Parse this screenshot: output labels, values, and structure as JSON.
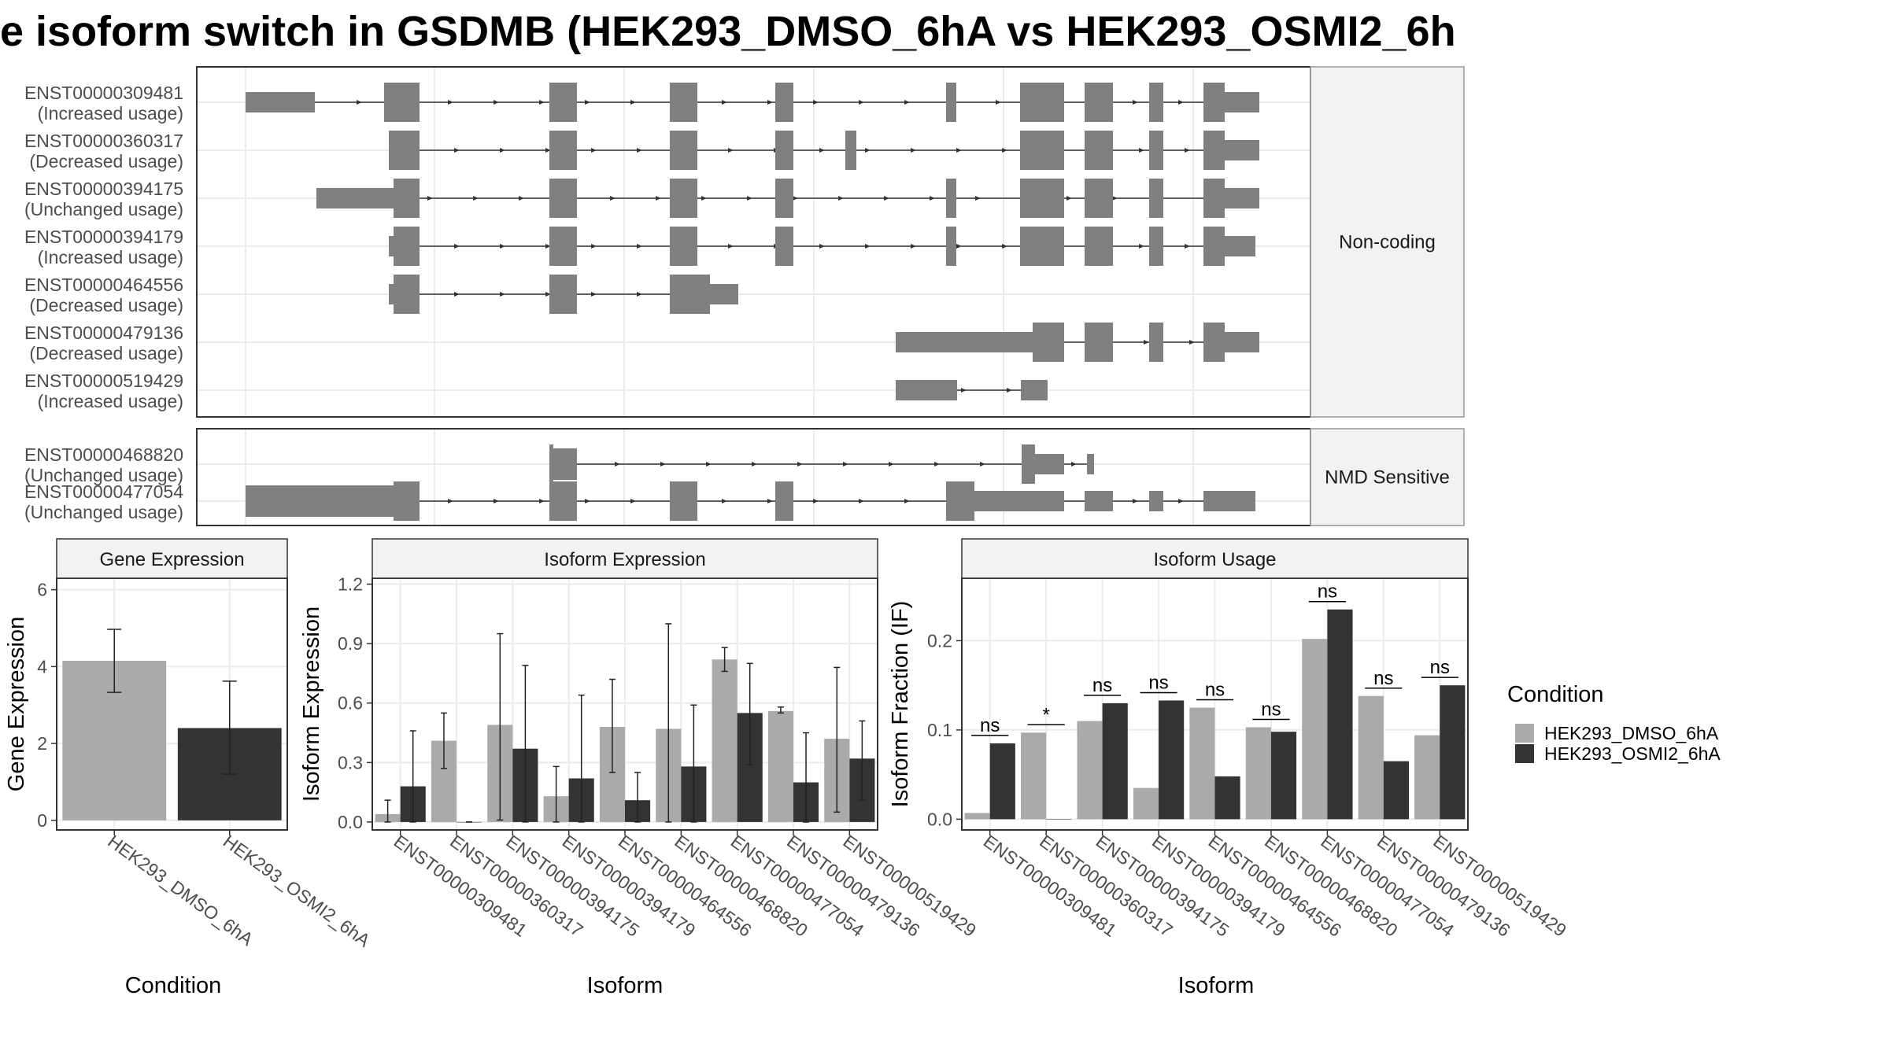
{
  "title": "e isoform switch in GSDMB (HEK293_DMSO_6hA vs HEK293_OSMI2_6h",
  "colors": {
    "exon": "#808080",
    "dmso": "#AAAAAA",
    "osmi2": "#333333",
    "grid": "#ebebeb",
    "strip": "#f2f2f2",
    "border": "#333333"
  },
  "structure_panel": {
    "groups": [
      {
        "label": "Non-coding",
        "transcripts": [
          {
            "id": "ENST00000309481",
            "usage": "(Increased usage)"
          },
          {
            "id": "ENST00000360317",
            "usage": "(Decreased usage)"
          },
          {
            "id": "ENST00000394175",
            "usage": "(Unchanged usage)"
          },
          {
            "id": "ENST00000394179",
            "usage": "(Increased usage)"
          },
          {
            "id": "ENST00000464556",
            "usage": "(Decreased usage)"
          },
          {
            "id": "ENST00000479136",
            "usage": "(Decreased usage)"
          },
          {
            "id": "ENST00000519429",
            "usage": "(Increased usage)"
          }
        ]
      },
      {
        "label": "NMD Sensitive",
        "transcripts": [
          {
            "id": "ENST00000468820",
            "usage": "(Unchanged usage)"
          },
          {
            "id": "ENST00000477054",
            "usage": "(Unchanged usage)"
          }
        ]
      }
    ]
  },
  "chart_data": [
    {
      "type": "bar",
      "title": "Gene Expression",
      "xlabel": "Condition",
      "ylabel": "Gene Expression",
      "ylim": [
        -0.25,
        6.3
      ],
      "yticks": [
        "0",
        "2",
        "4",
        "6"
      ],
      "categories": [
        "HEK293_DMSO_6hA",
        "HEK293_OSMI2_6hA"
      ],
      "values": [
        4.15,
        2.4
      ],
      "error_low": [
        3.33,
        1.2
      ],
      "error_high": [
        4.97,
        3.62
      ]
    },
    {
      "type": "bar",
      "title": "Isoform Expression",
      "xlabel": "Isoform",
      "ylabel": "Isoform Expression",
      "ylim": [
        -0.04,
        1.23
      ],
      "yticks": [
        "0.0",
        "0.3",
        "0.6",
        "0.9",
        "1.2"
      ],
      "categories": [
        "ENST00000309481",
        "ENST00000360317",
        "ENST00000394175",
        "ENST00000394179",
        "ENST00000464556",
        "ENST00000468820",
        "ENST00000477054",
        "ENST00000479136",
        "ENST00000519429"
      ],
      "series": [
        {
          "name": "HEK293_DMSO_6hA",
          "values": [
            0.04,
            0.41,
            0.49,
            0.13,
            0.48,
            0.47,
            0.82,
            0.56,
            0.42
          ],
          "error_low": [
            0.0,
            0.27,
            0.01,
            0.0,
            0.25,
            0.0,
            0.76,
            0.55,
            0.05
          ],
          "error_high": [
            0.11,
            0.55,
            0.95,
            0.28,
            0.72,
            1.0,
            0.88,
            0.58,
            0.78
          ]
        },
        {
          "name": "HEK293_OSMI2_6hA",
          "values": [
            0.18,
            0.0,
            0.37,
            0.22,
            0.11,
            0.28,
            0.55,
            0.2,
            0.32
          ],
          "error_low": [
            0.0,
            0.0,
            0.0,
            0.0,
            0.0,
            0.0,
            0.29,
            0.0,
            0.11
          ],
          "error_high": [
            0.46,
            0.0,
            0.79,
            0.64,
            0.25,
            0.59,
            0.8,
            0.45,
            0.51
          ]
        }
      ]
    },
    {
      "type": "bar",
      "title": "Isoform Usage",
      "xlabel": "Isoform",
      "ylabel": "Isoform Fraction (IF)",
      "ylim": [
        -0.012,
        0.27
      ],
      "yticks": [
        "0.0",
        "0.1",
        "0.2"
      ],
      "categories": [
        "ENST00000309481",
        "ENST00000360317",
        "ENST00000394175",
        "ENST00000394179",
        "ENST00000464556",
        "ENST00000468820",
        "ENST00000477054",
        "ENST00000479136",
        "ENST00000519429"
      ],
      "significance": [
        "ns",
        "*",
        "ns",
        "ns",
        "ns",
        "ns",
        "ns",
        "ns",
        "ns"
      ],
      "series": [
        {
          "name": "HEK293_DMSO_6hA",
          "values": [
            0.007,
            0.097,
            0.11,
            0.035,
            0.125,
            0.103,
            0.202,
            0.138,
            0.094
          ]
        },
        {
          "name": "HEK293_OSMI2_6hA",
          "values": [
            0.085,
            0.0,
            0.13,
            0.133,
            0.048,
            0.098,
            0.235,
            0.065,
            0.15
          ]
        }
      ]
    }
  ],
  "legend": {
    "title": "Condition",
    "items": [
      {
        "label": "HEK293_DMSO_6hA",
        "color": "#AAAAAA"
      },
      {
        "label": "HEK293_OSMI2_6hA",
        "color": "#333333"
      }
    ]
  }
}
